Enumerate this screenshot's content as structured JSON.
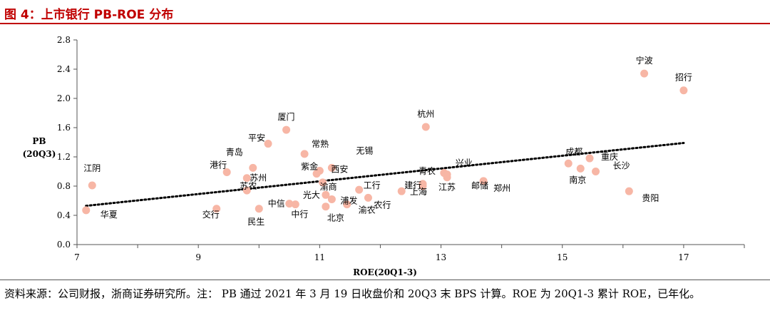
{
  "figure_title": "图 4：上市银行 PB-ROE 分布",
  "source_note": "资料来源：公司财报，浙商证券研究所。注： PB 通过 2021 年 3 月 19 日收盘价和 20Q3 末 BPS 计算。ROE 为 20Q1-3 累计 ROE，已年化。",
  "colors": {
    "title": "#c00000",
    "point": "#f7b6a5",
    "trend": "#000000",
    "axis": "#555555"
  },
  "chart_data": {
    "type": "scatter",
    "title": "上市银行 PB-ROE 分布",
    "xlabel": "ROE(20Q1-3)",
    "ylabel": "PB",
    "ylabel_sub": "(20Q3)",
    "xlim": [
      7,
      18
    ],
    "ylim": [
      0,
      2.8
    ],
    "x_ticks": [
      7,
      9,
      11,
      13,
      15,
      17
    ],
    "y_ticks": [
      "0.0",
      "0.4",
      "0.8",
      "1.2",
      "1.6",
      "2.0",
      "2.4",
      "2.8"
    ],
    "grid": false,
    "legend": "none",
    "trendline": {
      "style": "dotted",
      "x": [
        7.15,
        17.0
      ],
      "y": [
        0.53,
        1.39
      ]
    },
    "points": [
      {
        "name": "宁波",
        "x": 16.35,
        "y": 2.34
      },
      {
        "name": "招行",
        "x": 17.0,
        "y": 2.11
      },
      {
        "name": "杭州",
        "x": 12.75,
        "y": 1.61
      },
      {
        "name": "厦门",
        "x": 10.45,
        "y": 1.57
      },
      {
        "name": "平安",
        "x": 10.15,
        "y": 1.38
      },
      {
        "name": "常熟",
        "x": 10.75,
        "y": 1.24
      },
      {
        "name": "青岛",
        "x": 9.9,
        "y": 1.05
      },
      {
        "name": "成都",
        "x": 15.1,
        "y": 1.11
      },
      {
        "name": "重庆",
        "x": 15.45,
        "y": 1.18
      },
      {
        "name": "南京",
        "x": 15.3,
        "y": 1.04
      },
      {
        "name": "长沙",
        "x": 15.55,
        "y": 1.0
      },
      {
        "name": "江阴",
        "x": 7.25,
        "y": 0.81
      },
      {
        "name": "港行",
        "x": 9.47,
        "y": 0.99
      },
      {
        "name": "苏州",
        "x": 9.8,
        "y": 0.91
      },
      {
        "name": "苏农",
        "x": 9.8,
        "y": 0.74
      },
      {
        "name": "紫金",
        "x": 10.95,
        "y": 0.97
      },
      {
        "name": "无锡",
        "x": 11.2,
        "y": 1.05
      },
      {
        "name": "西安",
        "x": 11.0,
        "y": 1.01
      },
      {
        "name": "渝商",
        "x": 11.05,
        "y": 0.85
      },
      {
        "name": "光大",
        "x": 11.1,
        "y": 0.68
      },
      {
        "name": "中信",
        "x": 10.5,
        "y": 0.56
      },
      {
        "name": "中行",
        "x": 10.6,
        "y": 0.55
      },
      {
        "name": "北京",
        "x": 11.1,
        "y": 0.52
      },
      {
        "name": "华夏",
        "x": 7.15,
        "y": 0.47
      },
      {
        "name": "交行",
        "x": 9.3,
        "y": 0.49
      },
      {
        "name": "民生",
        "x": 10.0,
        "y": 0.49
      },
      {
        "name": "浦发",
        "x": 11.2,
        "y": 0.62
      },
      {
        "name": "工行",
        "x": 11.65,
        "y": 0.75
      },
      {
        "name": "渝农",
        "x": 11.45,
        "y": 0.55
      },
      {
        "name": "农行",
        "x": 11.8,
        "y": 0.64
      },
      {
        "name": "建行",
        "x": 12.35,
        "y": 0.73
      },
      {
        "name": "上海",
        "x": 12.7,
        "y": 0.8
      },
      {
        "name": "青农",
        "x": 12.7,
        "y": 0.83
      },
      {
        "name": "兴业",
        "x": 13.05,
        "y": 0.98
      },
      {
        "name": "江苏",
        "x": 13.1,
        "y": 0.96
      },
      {
        "name": "邮储",
        "x": 13.1,
        "y": 0.92
      },
      {
        "name": "郑州",
        "x": 13.7,
        "y": 0.87
      },
      {
        "name": "贵阳",
        "x": 16.1,
        "y": 0.73
      }
    ]
  }
}
